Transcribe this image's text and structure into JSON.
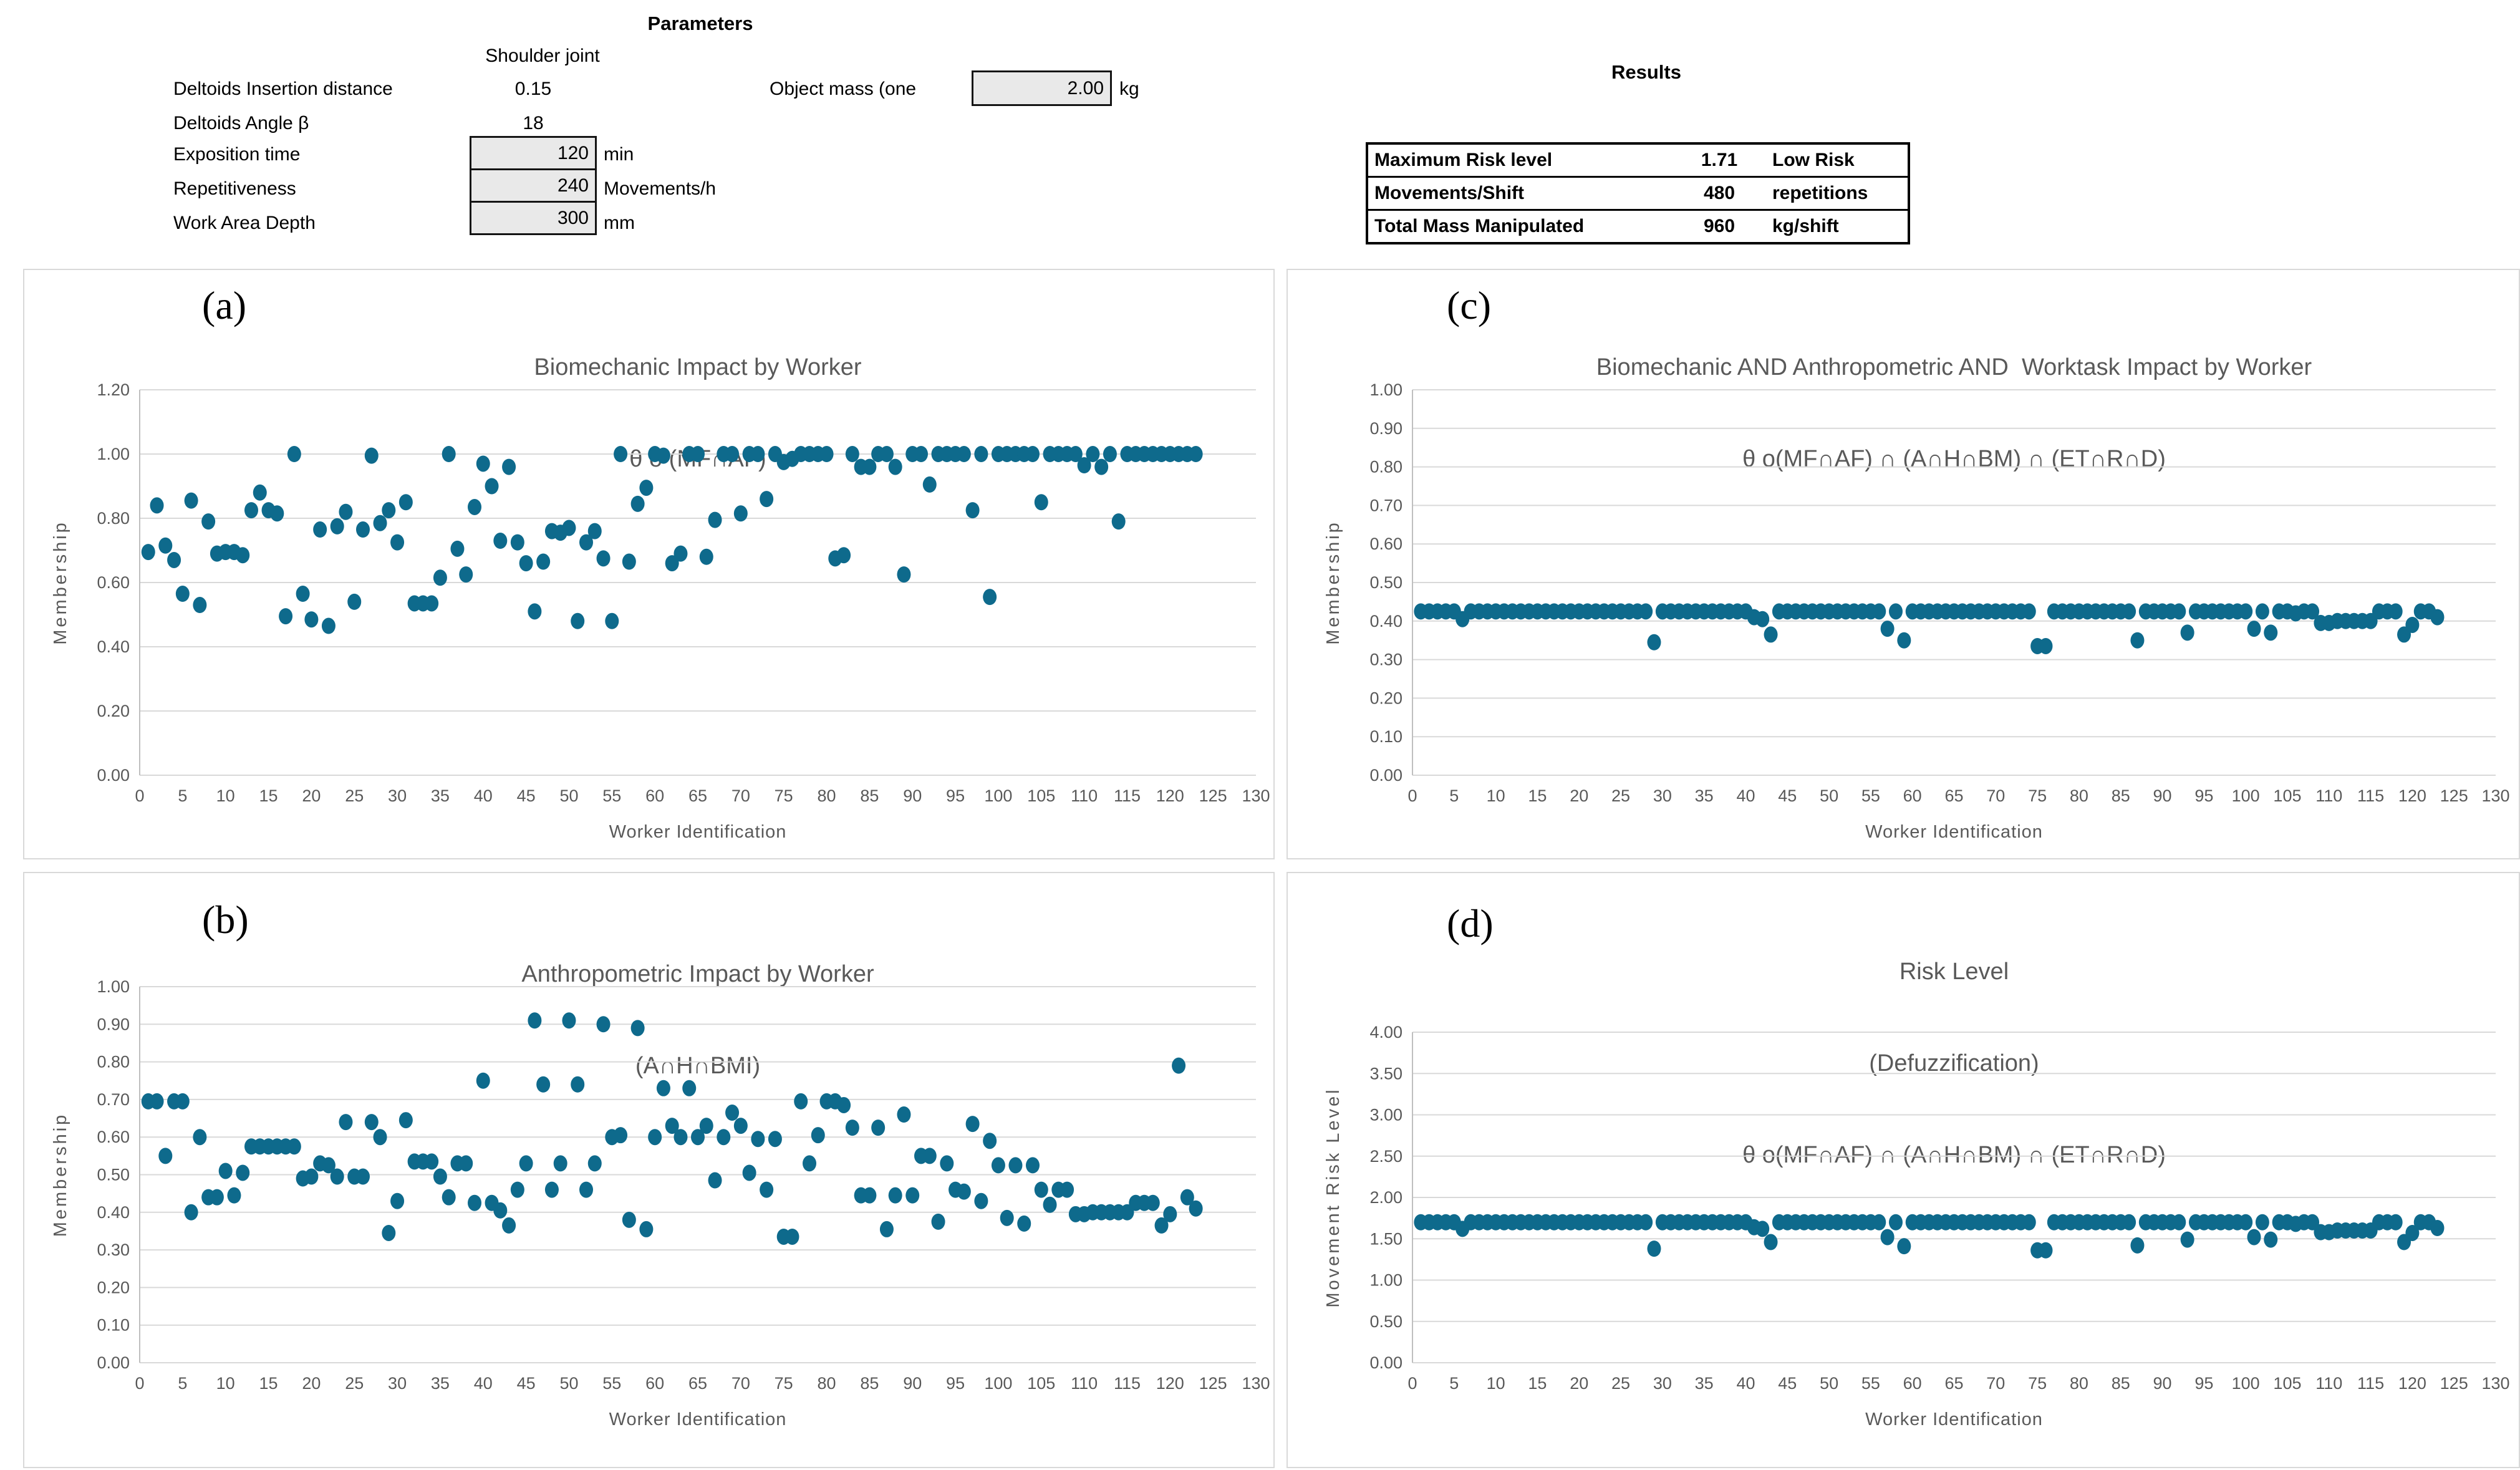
{
  "parameters": {
    "title": "Parameters",
    "column_header": "Shoulder joint",
    "rows": [
      {
        "label": "Deltoids Insertion distance",
        "value": "0.15",
        "unit": ""
      },
      {
        "label": "Deltoids Angle β",
        "value": "18",
        "unit": ""
      },
      {
        "label": "Exposition time",
        "value": "120",
        "unit": "min"
      },
      {
        "label": "Repetitiveness",
        "value": "240",
        "unit": "Movements/h"
      },
      {
        "label": "Work Area Depth",
        "value": "300",
        "unit": "mm"
      }
    ],
    "object_mass": {
      "label": "Object mass (one",
      "value": "2.00",
      "unit": "kg"
    }
  },
  "results": {
    "title": "Results",
    "rows": [
      {
        "label": "Maximum Risk level",
        "value": "1.71",
        "unit": "Low Risk"
      },
      {
        "label": "Movements/Shift",
        "value": "480",
        "unit": "repetitions"
      },
      {
        "label": "Total Mass Manipulated",
        "value": "960",
        "unit": "kg/shift"
      }
    ]
  },
  "colors": {
    "dot": "#0E6A8C",
    "grid": "#D9D9D9",
    "axis": "#BFBFBF",
    "chart_text": "#595959"
  },
  "chart_data": [
    {
      "id": "a",
      "panel_label": "(a)",
      "type": "scatter",
      "title_lines": [
        "Biomechanic Impact by Worker",
        "θ o (MF∩AF)"
      ],
      "xlabel": "Worker Identification",
      "ylabel": "Membership",
      "ylim": [
        0,
        1.2
      ],
      "ystep": 0.2,
      "xlim": [
        0,
        130
      ],
      "xstep": 5,
      "x_start": 1,
      "grid": true,
      "legend": "none",
      "values": [
        0.695,
        0.84,
        0.715,
        0.67,
        0.565,
        0.855,
        0.53,
        0.79,
        0.69,
        0.695,
        0.695,
        0.685,
        0.825,
        0.88,
        0.825,
        0.815,
        0.495,
        1.0,
        0.565,
        0.485,
        0.765,
        0.465,
        0.775,
        0.82,
        0.54,
        0.765,
        0.995,
        0.785,
        0.825,
        0.725,
        0.85,
        0.535,
        0.535,
        0.535,
        0.615,
        1.0,
        0.705,
        0.625,
        0.835,
        0.97,
        0.9,
        0.73,
        0.96,
        0.725,
        0.66,
        0.51,
        0.665,
        0.76,
        0.755,
        0.77,
        0.48,
        0.725,
        0.76,
        0.675,
        0.48,
        1.0,
        0.665,
        0.845,
        0.895,
        1.0,
        0.995,
        0.66,
        0.69,
        1.0,
        1.0,
        0.68,
        0.795,
        1.0,
        1.0,
        0.815,
        1.0,
        1.0,
        0.86,
        1.0,
        0.975,
        0.985,
        1.0,
        1.0,
        1.0,
        1.0,
        0.675,
        0.685,
        1.0,
        0.96,
        0.96,
        1.0,
        1.0,
        0.96,
        0.625,
        1.0,
        1.0,
        0.905,
        1.0,
        1.0,
        1.0,
        1.0,
        0.825,
        1.0,
        0.555,
        1.0,
        1.0,
        1.0,
        1.0,
        1.0,
        0.85,
        1.0,
        1.0,
        1.0,
        1.0,
        0.965,
        1.0,
        0.96,
        1.0,
        0.79,
        1.0,
        1.0,
        1.0,
        1.0,
        1.0,
        1.0,
        1.0,
        1.0,
        1.0
      ]
    },
    {
      "id": "b",
      "panel_label": "(b)",
      "type": "scatter",
      "title_lines": [
        "Anthropometric Impact by Worker",
        "(A∩H∩BMI)"
      ],
      "xlabel": "Worker Identification",
      "ylabel": "Membership",
      "ylim": [
        0,
        1.0
      ],
      "ystep": 0.1,
      "xlim": [
        0,
        130
      ],
      "xstep": 5,
      "x_start": 1,
      "grid": true,
      "legend": "none",
      "values": [
        0.695,
        0.695,
        0.55,
        0.695,
        0.695,
        0.4,
        0.6,
        0.44,
        0.44,
        0.51,
        0.445,
        0.505,
        0.575,
        0.575,
        0.575,
        0.575,
        0.575,
        0.575,
        0.49,
        0.495,
        0.53,
        0.525,
        0.495,
        0.64,
        0.495,
        0.495,
        0.64,
        0.6,
        0.345,
        0.43,
        0.645,
        0.535,
        0.535,
        0.535,
        0.495,
        0.44,
        0.53,
        0.53,
        0.425,
        0.75,
        0.425,
        0.405,
        0.365,
        0.46,
        0.53,
        0.91,
        0.74,
        0.46,
        0.53,
        0.91,
        0.74,
        0.46,
        0.53,
        0.9,
        0.6,
        0.605,
        0.38,
        0.89,
        0.355,
        0.6,
        0.73,
        0.63,
        0.6,
        0.73,
        0.6,
        0.63,
        0.485,
        0.6,
        0.665,
        0.63,
        0.505,
        0.595,
        0.46,
        0.595,
        0.335,
        0.335,
        0.695,
        0.53,
        0.605,
        0.695,
        0.695,
        0.685,
        0.625,
        0.445,
        0.445,
        0.625,
        0.355,
        0.445,
        0.66,
        0.445,
        0.55,
        0.55,
        0.375,
        0.53,
        0.46,
        0.455,
        0.635,
        0.43,
        0.59,
        0.525,
        0.385,
        0.525,
        0.37,
        0.525,
        0.46,
        0.42,
        0.46,
        0.46,
        0.395,
        0.395,
        0.4,
        0.4,
        0.4,
        0.4,
        0.4,
        0.425,
        0.425,
        0.425,
        0.365,
        0.395,
        0.79,
        0.44,
        0.41
      ]
    },
    {
      "id": "c",
      "panel_label": "(c)",
      "type": "scatter",
      "title_lines": [
        "Biomechanic AND Anthropometric AND  Worktask Impact by Worker",
        "θ o(MF∩AF) ∩ (A∩H∩BM) ∩ (ET∩R∩D)"
      ],
      "xlabel": "Worker Identification",
      "ylabel": "Membership",
      "ylim": [
        0,
        1.0
      ],
      "ystep": 0.1,
      "xlim": [
        0,
        130
      ],
      "xstep": 5,
      "x_start": 1,
      "grid": true,
      "legend": "none",
      "values": [
        0.425,
        0.425,
        0.425,
        0.425,
        0.425,
        0.405,
        0.425,
        0.425,
        0.425,
        0.425,
        0.425,
        0.425,
        0.425,
        0.425,
        0.425,
        0.425,
        0.425,
        0.425,
        0.425,
        0.425,
        0.425,
        0.425,
        0.425,
        0.425,
        0.425,
        0.425,
        0.425,
        0.425,
        0.345,
        0.425,
        0.425,
        0.425,
        0.425,
        0.425,
        0.425,
        0.425,
        0.425,
        0.425,
        0.425,
        0.425,
        0.41,
        0.405,
        0.365,
        0.425,
        0.425,
        0.425,
        0.425,
        0.425,
        0.425,
        0.425,
        0.425,
        0.425,
        0.425,
        0.425,
        0.425,
        0.425,
        0.38,
        0.425,
        0.35,
        0.425,
        0.425,
        0.425,
        0.425,
        0.425,
        0.425,
        0.425,
        0.425,
        0.425,
        0.425,
        0.425,
        0.425,
        0.425,
        0.425,
        0.425,
        0.335,
        0.335,
        0.425,
        0.425,
        0.425,
        0.425,
        0.425,
        0.425,
        0.425,
        0.425,
        0.425,
        0.425,
        0.35,
        0.425,
        0.425,
        0.425,
        0.425,
        0.425,
        0.37,
        0.425,
        0.425,
        0.425,
        0.425,
        0.425,
        0.425,
        0.425,
        0.38,
        0.425,
        0.37,
        0.425,
        0.425,
        0.42,
        0.425,
        0.425,
        0.395,
        0.395,
        0.4,
        0.4,
        0.4,
        0.4,
        0.4,
        0.425,
        0.425,
        0.425,
        0.365,
        0.39,
        0.425,
        0.425,
        0.41
      ]
    },
    {
      "id": "d",
      "panel_label": "(d)",
      "type": "scatter",
      "title_lines": [
        "Risk Level",
        "(Defuzzification)",
        "θ o(MF∩AF) ∩ (A∩H∩BM) ∩ (ET∩R∩D)"
      ],
      "xlabel": "Worker Identification",
      "ylabel": "Movement Risk Level",
      "ylim": [
        0,
        4.0
      ],
      "ystep": 0.5,
      "xlim": [
        0,
        130
      ],
      "xstep": 5,
      "x_start": 1,
      "grid": true,
      "legend": "none",
      "values": [
        1.7,
        1.7,
        1.7,
        1.7,
        1.7,
        1.62,
        1.7,
        1.7,
        1.7,
        1.7,
        1.7,
        1.7,
        1.7,
        1.7,
        1.7,
        1.7,
        1.7,
        1.7,
        1.7,
        1.7,
        1.7,
        1.7,
        1.7,
        1.7,
        1.7,
        1.7,
        1.7,
        1.7,
        1.38,
        1.7,
        1.7,
        1.7,
        1.7,
        1.7,
        1.7,
        1.7,
        1.7,
        1.7,
        1.7,
        1.7,
        1.64,
        1.62,
        1.46,
        1.7,
        1.7,
        1.7,
        1.7,
        1.7,
        1.7,
        1.7,
        1.7,
        1.7,
        1.7,
        1.7,
        1.7,
        1.7,
        1.52,
        1.7,
        1.41,
        1.7,
        1.7,
        1.7,
        1.7,
        1.7,
        1.7,
        1.7,
        1.7,
        1.7,
        1.7,
        1.7,
        1.7,
        1.7,
        1.7,
        1.7,
        1.36,
        1.36,
        1.7,
        1.7,
        1.7,
        1.7,
        1.7,
        1.7,
        1.7,
        1.7,
        1.7,
        1.7,
        1.42,
        1.7,
        1.7,
        1.7,
        1.7,
        1.7,
        1.49,
        1.7,
        1.7,
        1.7,
        1.7,
        1.7,
        1.7,
        1.7,
        1.52,
        1.7,
        1.49,
        1.7,
        1.7,
        1.68,
        1.7,
        1.7,
        1.58,
        1.58,
        1.6,
        1.6,
        1.6,
        1.6,
        1.6,
        1.7,
        1.7,
        1.7,
        1.46,
        1.57,
        1.7,
        1.7,
        1.63
      ]
    }
  ]
}
